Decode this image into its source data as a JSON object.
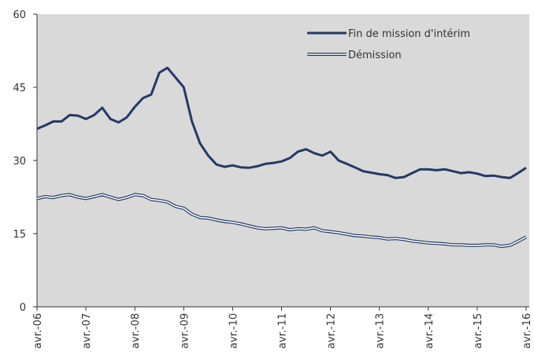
{
  "chart_data": {
    "type": "line",
    "categories": [
      "avr.-06",
      null,
      null,
      null,
      null,
      null,
      "avr.-07",
      null,
      null,
      null,
      null,
      null,
      "avr.-08",
      null,
      null,
      null,
      null,
      null,
      "avr.-09",
      null,
      null,
      null,
      null,
      null,
      "avr.-10",
      null,
      null,
      null,
      null,
      null,
      "avr.-11",
      null,
      null,
      null,
      null,
      null,
      "avr.-12",
      null,
      null,
      null,
      null,
      null,
      "avr.-13",
      null,
      null,
      null,
      null,
      null,
      "avr.-14",
      null,
      null,
      null,
      null,
      null,
      "avr.-15",
      null,
      null,
      null,
      null,
      null,
      "avr.-16"
    ],
    "series": [
      {
        "name": "Fin de mission d'intérim",
        "color": "#243a64",
        "line_style": "solid",
        "values": [
          36.5,
          37.2,
          38,
          38,
          39.3,
          39.2,
          38.5,
          39.3,
          40.8,
          38.5,
          37.8,
          38.8,
          41,
          42.8,
          43.5,
          48,
          49,
          47,
          45,
          38,
          33.5,
          31,
          29.2,
          28.7,
          29,
          28.6,
          28.5,
          28.8,
          29.3,
          29.5,
          29.8,
          30.5,
          31.8,
          32.3,
          31.5,
          31,
          31.8,
          30,
          29.3,
          28.6,
          27.8,
          27.5,
          27.2,
          27,
          26.4,
          26.6,
          27.4,
          28.2,
          28.2,
          28,
          28.2,
          27.8,
          27.4,
          27.6,
          27.3,
          26.8,
          26.9,
          26.6,
          26.4,
          27.4,
          28.5
        ]
      },
      {
        "name": "Démission",
        "color": "#243a64",
        "line_style": "double",
        "values": [
          22.2,
          22.6,
          22.4,
          22.8,
          23,
          22.5,
          22.2,
          22.6,
          23,
          22.5,
          22,
          22.4,
          23,
          22.8,
          22,
          21.8,
          21.5,
          20.6,
          20.2,
          19,
          18.3,
          18.2,
          17.8,
          17.5,
          17.3,
          17.0,
          16.6,
          16.2,
          16.0,
          16.1,
          16.2,
          15.8,
          16,
          15.9,
          16.2,
          15.6,
          15.4,
          15.2,
          14.9,
          14.6,
          14.5,
          14.3,
          14.2,
          13.9,
          14,
          13.8,
          13.5,
          13.3,
          13.1,
          13,
          12.9,
          12.7,
          12.7,
          12.6,
          12.6,
          12.7,
          12.7,
          12.4,
          12.6,
          13.4,
          14.3
        ]
      }
    ],
    "ylim": [
      0,
      60
    ],
    "yticks": [
      0,
      15,
      30,
      45,
      60
    ],
    "legend": "top-right",
    "plot_background": "#d9d9d9"
  }
}
